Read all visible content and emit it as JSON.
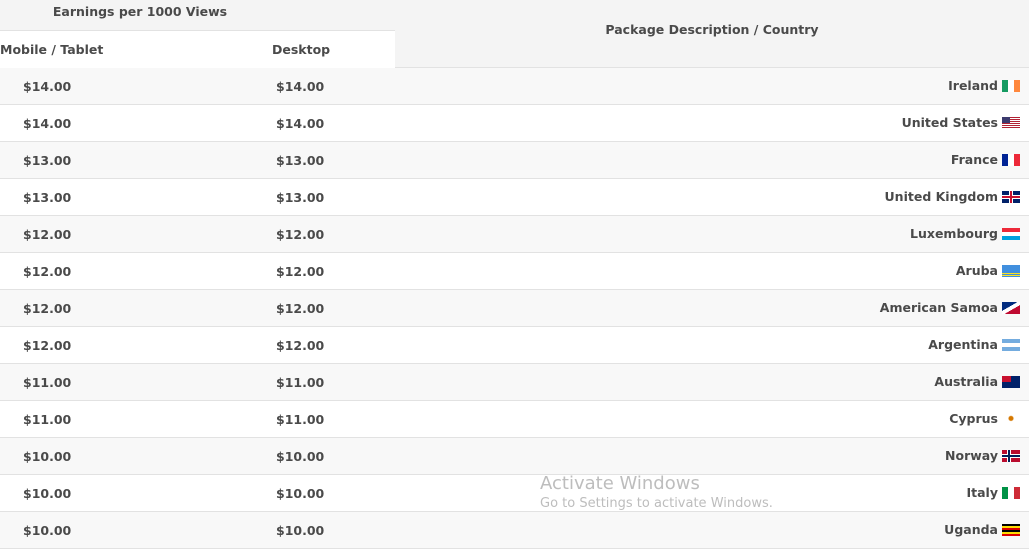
{
  "header": {
    "earnings": "Earnings per 1000 Views",
    "mobile": "Mobile / Tablet",
    "desktop": "Desktop",
    "package": "Package Description / Country"
  },
  "rows": [
    {
      "mobile": "$14.00",
      "desktop": "$14.00",
      "country": "Ireland",
      "flag": "linear-gradient(90deg,#169b62 33%,#fff 33% 66%,#ff883e 66%)"
    },
    {
      "mobile": "$14.00",
      "desktop": "$14.00",
      "country": "United States",
      "flag": "linear-gradient(#3c3b6e,#3c3b6e) 0 0/8px 6px no-repeat,repeating-linear-gradient(#b22234 0 1px,#fff 1px 2px)"
    },
    {
      "mobile": "$13.00",
      "desktop": "$13.00",
      "country": "France",
      "flag": "linear-gradient(90deg,#002395 33%,#fff 33% 66%,#ed2939 66%)"
    },
    {
      "mobile": "$13.00",
      "desktop": "$13.00",
      "country": "United Kingdom",
      "flag": "linear-gradient(#c8102e,#c8102e) center/18px 2px no-repeat,linear-gradient(#c8102e,#c8102e) center/2px 12px no-repeat,linear-gradient(#fff,#fff) center/18px 4px no-repeat,linear-gradient(#fff,#fff) center/4px 12px no-repeat,#012169"
    },
    {
      "mobile": "$12.00",
      "desktop": "$12.00",
      "country": "Luxembourg",
      "flag": "linear-gradient(#ed2939 33%,#fff 33% 66%,#00a1de 66%)"
    },
    {
      "mobile": "$12.00",
      "desktop": "$12.00",
      "country": "Aruba",
      "flag": "linear-gradient(#418fde 66%,#fbe122 66% 75%,#418fde 75% 83%,#fbe122 83% 91%,#418fde 91%)"
    },
    {
      "mobile": "$12.00",
      "desktop": "$12.00",
      "country": "American Samoa",
      "flag": "linear-gradient(150deg,#002b7f 40%,#fff 40% 60%,#bf0a30 60%)"
    },
    {
      "mobile": "$12.00",
      "desktop": "$12.00",
      "country": "Argentina",
      "flag": "linear-gradient(#74acdf 33%,#fff 33% 66%,#74acdf 66%)"
    },
    {
      "mobile": "$11.00",
      "desktop": "$11.00",
      "country": "Australia",
      "flag": "linear-gradient(#c8102e,#c8102e) 0 0/9px 6px no-repeat,#012169"
    },
    {
      "mobile": "$11.00",
      "desktop": "$11.00",
      "country": "Cyprus",
      "flag": "radial-gradient(circle at 50% 45%,#d57800 2px,transparent 3px),#fff"
    },
    {
      "mobile": "$10.00",
      "desktop": "$10.00",
      "country": "Norway",
      "flag": "linear-gradient(#00205b,#00205b) 0 5px/18px 2px no-repeat,linear-gradient(#00205b,#00205b) 6px 0/2px 12px no-repeat,linear-gradient(#fff,#fff) 0 4px/18px 4px no-repeat,linear-gradient(#fff,#fff) 5px 0/4px 12px no-repeat,#ba0c2f"
    },
    {
      "mobile": "$10.00",
      "desktop": "$10.00",
      "country": "Italy",
      "flag": "linear-gradient(90deg,#009246 33%,#fff 33% 66%,#ce2b37 66%)"
    },
    {
      "mobile": "$10.00",
      "desktop": "$10.00",
      "country": "Uganda",
      "flag": "linear-gradient(#000 16%,#fcdc04 16% 33%,#d90000 33% 50%,#000 50% 66%,#fcdc04 66% 83%,#d90000 83%)"
    }
  ],
  "watermark": {
    "line1": "Activate Windows",
    "line2": "Go to Settings to activate Windows."
  }
}
